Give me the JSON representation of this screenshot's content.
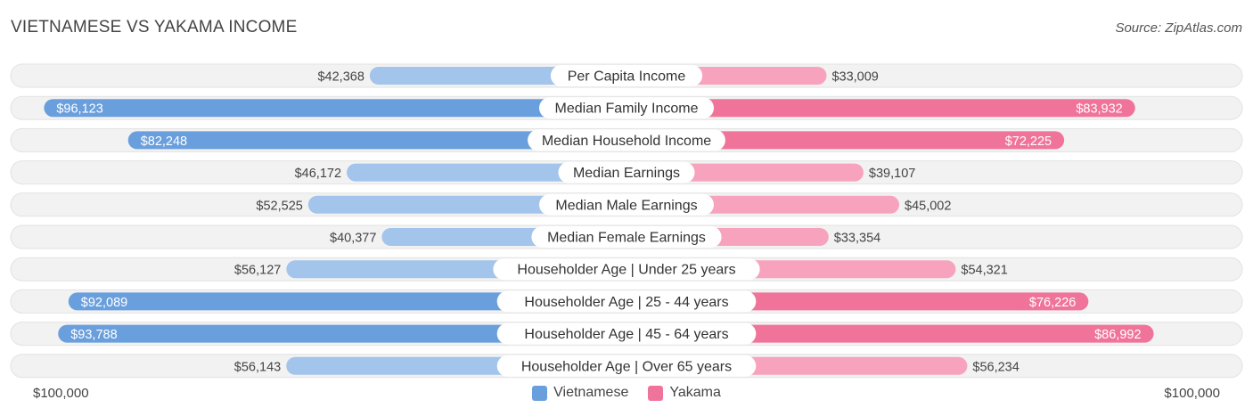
{
  "header": {
    "title": "VIETNAMESE VS YAKAMA INCOME",
    "source": "Source: ZipAtlas.com"
  },
  "axis": {
    "left_label": "$100,000",
    "right_label": "$100,000"
  },
  "legend": {
    "items": [
      {
        "name": "Vietnamese",
        "color": "#6a9fdd"
      },
      {
        "name": "Yakama",
        "color": "#f07499"
      }
    ]
  },
  "chart_data": {
    "type": "bar",
    "orientation": "horizontal-butterfly",
    "max": 100000,
    "categories": [
      "Per Capita Income",
      "Median Family Income",
      "Median Household Income",
      "Median Earnings",
      "Median Male Earnings",
      "Median Female Earnings",
      "Householder Age | Under 25 years",
      "Householder Age | 25 - 44 years",
      "Householder Age | 45 - 64 years",
      "Householder Age | Over 65 years"
    ],
    "series": [
      {
        "name": "Vietnamese",
        "color": "#6a9fdd",
        "light_color": "#a3c4eb",
        "values": [
          42368,
          96123,
          82248,
          46172,
          52525,
          40377,
          56127,
          92089,
          93788,
          56143
        ],
        "labels": [
          "$42,368",
          "$96,123",
          "$82,248",
          "$46,172",
          "$52,525",
          "$40,377",
          "$56,127",
          "$92,089",
          "$93,788",
          "$56,143"
        ]
      },
      {
        "name": "Yakama",
        "color": "#f07499",
        "light_color": "#f7a3bd",
        "values": [
          33009,
          83932,
          72225,
          39107,
          45002,
          33354,
          54321,
          76226,
          86992,
          56234
        ],
        "labels": [
          "$33,009",
          "$83,932",
          "$72,225",
          "$39,107",
          "$45,002",
          "$33,354",
          "$54,321",
          "$76,226",
          "$86,992",
          "$56,234"
        ]
      }
    ]
  }
}
